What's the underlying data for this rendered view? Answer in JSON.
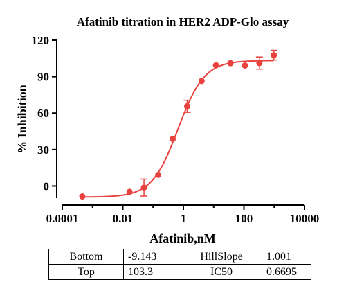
{
  "chart_data": {
    "type": "scatter",
    "title": "Afatinib titration in HER2 ADP-Glo assay",
    "xlabel": "Afatinib,nM",
    "ylabel": "% Inhibition",
    "x_scale": "log",
    "xlim": [
      0.0001,
      10000
    ],
    "ylim": [
      -10,
      120
    ],
    "x_tick_labels": [
      "0.0001",
      "0.01",
      "1",
      "100",
      "10000"
    ],
    "y_ticks": [
      0,
      30,
      60,
      90,
      120
    ],
    "y_tick_labels": [
      "0",
      "30",
      "60",
      "90",
      "120"
    ],
    "grid": false,
    "color": "#e8423f",
    "series": [
      {
        "points": [
          {
            "x": 0.00046,
            "y": -8.6,
            "err": 0
          },
          {
            "x": 0.0167,
            "y": -4.8,
            "err": 0
          },
          {
            "x": 0.05,
            "y": -1.3,
            "err": 7
          },
          {
            "x": 0.148,
            "y": 9.2,
            "err": 0
          },
          {
            "x": 0.444,
            "y": 38.7,
            "err": 0
          },
          {
            "x": 1.33,
            "y": 65.6,
            "err": 5
          },
          {
            "x": 4.0,
            "y": 86.4,
            "err": 0
          },
          {
            "x": 12.0,
            "y": 99.4,
            "err": 0
          },
          {
            "x": 36.0,
            "y": 101.1,
            "err": 0
          },
          {
            "x": 108,
            "y": 99.2,
            "err": 0
          },
          {
            "x": 324,
            "y": 101.2,
            "err": 5
          },
          {
            "x": 972,
            "y": 107.7,
            "err": 4
          }
        ]
      }
    ],
    "fit": {
      "bottom": -9.143,
      "top": 103.3,
      "hill": 1.001,
      "ic50": 0.6695
    }
  },
  "fit_table": {
    "row1": {
      "label1": "Bottom",
      "value1": "-9.143",
      "label2": "HillSlope",
      "value2": "1.001"
    },
    "row2": {
      "label1": "Top",
      "value1": "103.3",
      "label2": "IC50",
      "value2": "0.6695"
    }
  }
}
